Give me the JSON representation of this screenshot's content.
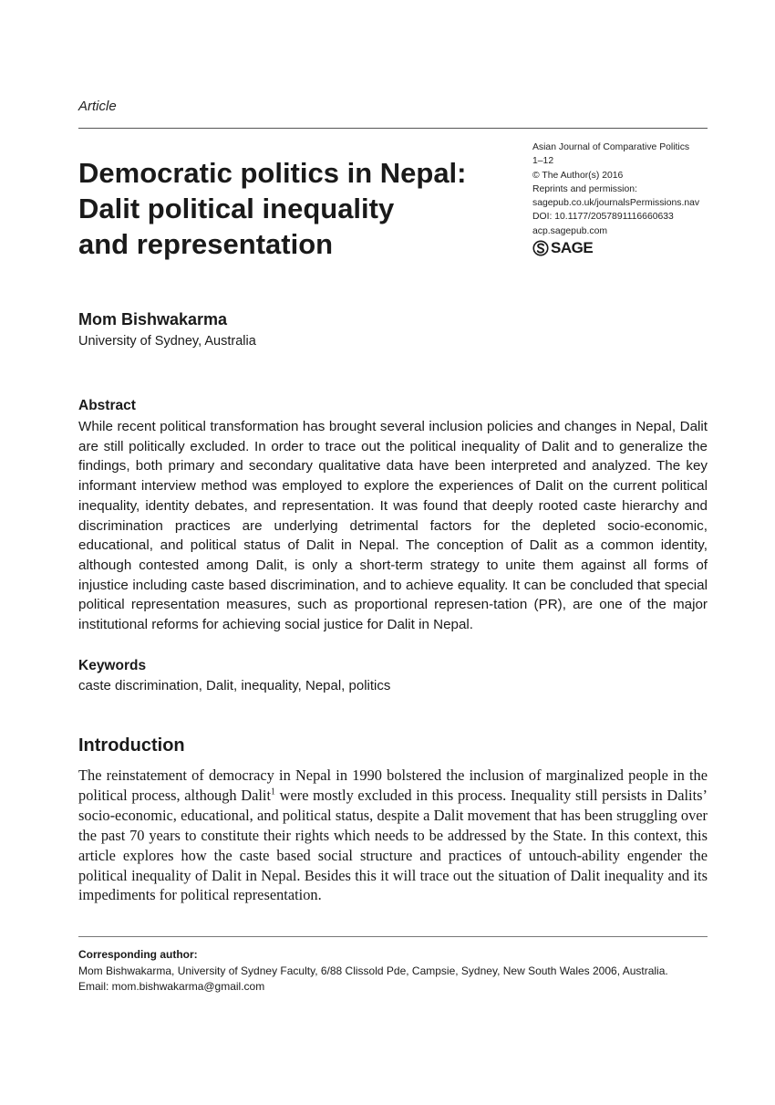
{
  "article_label": "Article",
  "title_lines": [
    "Democratic politics in Nepal:",
    "Dalit political inequality",
    "and representation"
  ],
  "journal_info": {
    "journal": "Asian Journal of Comparative Politics",
    "pages": "1–12",
    "copyright": "© The Author(s) 2016",
    "reprints": "Reprints and permission:",
    "permissions_url": "sagepub.co.uk/journalsPermissions.nav",
    "doi": "DOI: 10.1177/2057891116660633",
    "site": "acp.sagepub.com",
    "publisher_logo": "SAGE"
  },
  "author": {
    "name": "Mom Bishwakarma",
    "affiliation": "University of Sydney, Australia"
  },
  "abstract": {
    "heading": "Abstract",
    "text": "While recent political transformation has brought several inclusion policies and changes in Nepal, Dalit are still politically excluded. In order to trace out the political inequality of Dalit and to generalize the findings, both primary and secondary qualitative data have been interpreted and analyzed. The key informant interview method was employed to explore the experiences of Dalit on the current political inequality, identity debates, and representation. It was found that deeply rooted caste hierarchy and discrimination practices are underlying detrimental factors for the depleted socio-economic, educational, and political status of Dalit in Nepal. The conception of Dalit as a common identity, although contested among Dalit, is only a short-term strategy to unite them against all forms of injustice including caste based discrimination, and to achieve equality. It can be concluded that special political representation measures, such as proportional represen-tation (PR), are one of the major institutional reforms for achieving social justice for Dalit in Nepal."
  },
  "keywords": {
    "heading": "Keywords",
    "text": "caste discrimination, Dalit, inequality, Nepal, politics"
  },
  "introduction": {
    "heading": "Introduction",
    "text_before_note": "The reinstatement of democracy in Nepal in 1990 bolstered the inclusion of marginalized people in the political process, although Dalit",
    "footnote_marker": "1",
    "text_after_note": " were mostly excluded in this process. Inequality still persists in Dalits’ socio-economic, educational, and political status, despite a Dalit movement that has been struggling over the past 70 years to constitute their rights which needs to be addressed by the State. In this context, this article explores how the caste based social structure and practices of untouch-ability engender the political inequality of Dalit in Nepal. Besides this it will trace out the situation of Dalit inequality and its impediments for political representation."
  },
  "corresponding_author": {
    "heading": "Corresponding author:",
    "address": "Mom Bishwakarma, University of Sydney Faculty, 6/88 Clissold Pde, Campsie, Sydney, New South Wales 2006, Australia.",
    "email": "Email: mom.bishwakarma@gmail.com"
  }
}
